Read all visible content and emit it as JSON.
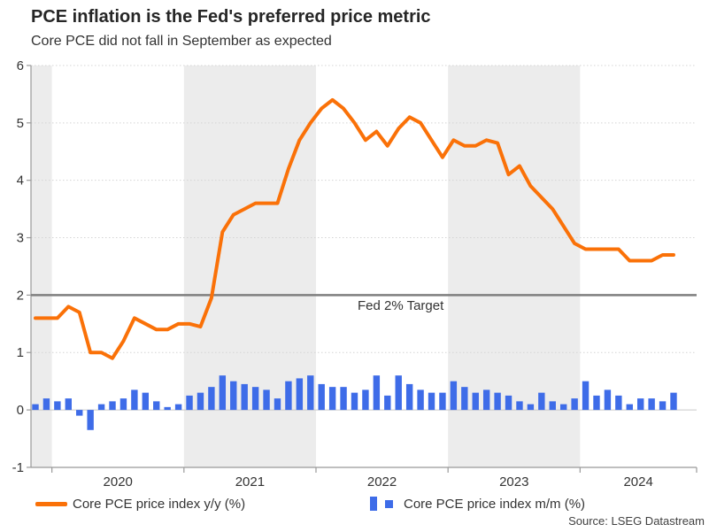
{
  "title": "PCE inflation is the Fed's preferred price metric",
  "subtitle": "Core PCE did not fall in September as expected",
  "source": "Source: LSEG Datastream",
  "chart_data": {
    "type": "combo",
    "title": "PCE inflation is the Fed's preferred price metric",
    "subtitle": "Core PCE did not fall in September as expected",
    "x_monthly": [
      "2019-11",
      "2019-12",
      "2020-01",
      "2020-02",
      "2020-03",
      "2020-04",
      "2020-05",
      "2020-06",
      "2020-07",
      "2020-08",
      "2020-09",
      "2020-10",
      "2020-11",
      "2020-12",
      "2021-01",
      "2021-02",
      "2021-03",
      "2021-04",
      "2021-05",
      "2021-06",
      "2021-07",
      "2021-08",
      "2021-09",
      "2021-10",
      "2021-11",
      "2021-12",
      "2022-01",
      "2022-02",
      "2022-03",
      "2022-04",
      "2022-05",
      "2022-06",
      "2022-07",
      "2022-08",
      "2022-09",
      "2022-10",
      "2022-11",
      "2022-12",
      "2023-01",
      "2023-02",
      "2023-03",
      "2023-04",
      "2023-05",
      "2023-06",
      "2023-07",
      "2023-08",
      "2023-09",
      "2023-10",
      "2023-11",
      "2023-12",
      "2024-01",
      "2024-02",
      "2024-03",
      "2024-04",
      "2024-05",
      "2024-06",
      "2024-07",
      "2024-08",
      "2024-09"
    ],
    "series": [
      {
        "name": "Core PCE price index y/y (%)",
        "type": "line",
        "color": "#fa7108",
        "values": [
          1.6,
          1.6,
          1.6,
          1.8,
          1.7,
          1.0,
          1.0,
          0.9,
          1.2,
          1.6,
          1.5,
          1.4,
          1.4,
          1.5,
          1.5,
          1.45,
          1.95,
          3.1,
          3.4,
          3.5,
          3.6,
          3.6,
          3.6,
          4.2,
          4.7,
          5.0,
          5.25,
          5.4,
          5.25,
          5.0,
          4.7,
          4.85,
          4.6,
          4.9,
          5.1,
          5.0,
          4.7,
          4.4,
          4.7,
          4.6,
          4.6,
          4.7,
          4.65,
          4.1,
          4.25,
          3.9,
          3.7,
          3.5,
          3.2,
          2.9,
          2.8,
          2.8,
          2.8,
          2.8,
          2.6,
          2.6,
          2.6,
          2.7,
          2.7
        ]
      },
      {
        "name": "Core PCE price index m/m (%)",
        "type": "bar",
        "color": "#3e6ce8",
        "values": [
          0.1,
          0.2,
          0.15,
          0.2,
          -0.1,
          -0.35,
          0.1,
          0.15,
          0.2,
          0.35,
          0.3,
          0.15,
          0.05,
          0.1,
          0.25,
          0.3,
          0.4,
          0.6,
          0.5,
          0.45,
          0.4,
          0.35,
          0.2,
          0.5,
          0.55,
          0.6,
          0.45,
          0.4,
          0.4,
          0.3,
          0.35,
          0.6,
          0.25,
          0.6,
          0.45,
          0.35,
          0.3,
          0.3,
          0.5,
          0.4,
          0.3,
          0.35,
          0.3,
          0.25,
          0.15,
          0.1,
          0.3,
          0.15,
          0.1,
          0.2,
          0.5,
          0.25,
          0.35,
          0.25,
          0.1,
          0.2,
          0.2,
          0.15,
          0.3
        ]
      }
    ],
    "target_line": {
      "value": 2,
      "label": "Fed 2% Target",
      "color": "#7f7f7f"
    },
    "ylim": [
      -1,
      6
    ],
    "yticks": [
      -1,
      0,
      1,
      2,
      3,
      4,
      5,
      6
    ],
    "x_tick_labels": [
      "2020",
      "2021",
      "2022",
      "2023",
      "2024"
    ],
    "shaded_band_color": "#ececec",
    "grid": "horizontal-dotted",
    "legend_position": "bottom"
  }
}
